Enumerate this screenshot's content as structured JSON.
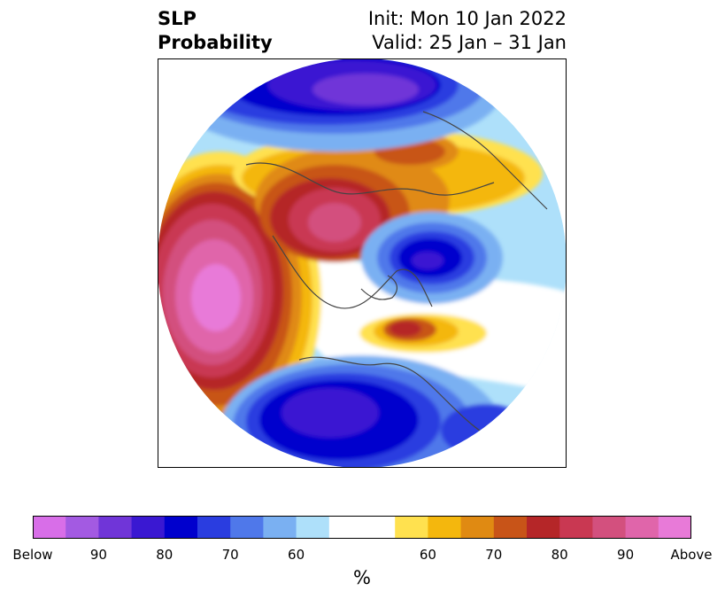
{
  "title": {
    "left_line1": "SLP",
    "left_line2": "Probability",
    "right_line1": "Init: Mon 10 Jan 2022",
    "right_line2": "Valid: 25 Jan – 31 Jan"
  },
  "map": {
    "projection": "north-polar-stereographic",
    "contour_levels_percent": [
      50,
      60,
      65,
      70,
      75,
      80,
      85,
      90,
      95
    ],
    "features": [
      {
        "name": "Below-normal SLP core (Alaska / Bering / Arctic Siberia)",
        "category": "below",
        "max_percent": 95
      },
      {
        "name": "Below-normal SLP core (Scandinavia / Barents)",
        "category": "below",
        "max_percent": 95
      },
      {
        "name": "Below-normal SLP (Eastern Europe / Russia region)",
        "category": "below",
        "max_percent": 90
      },
      {
        "name": "Above-normal SLP core (North Pacific)",
        "category": "above",
        "max_percent": 100
      },
      {
        "name": "Above-normal SLP (Siberia / East Asia)",
        "category": "above",
        "max_percent": 90
      },
      {
        "name": "Above-normal SLP (Greenland / Baffin)",
        "category": "above",
        "max_percent": 80
      }
    ]
  },
  "colorbar": {
    "units": "%",
    "colors": [
      "#d86ee8",
      "#a35ae2",
      "#7035d8",
      "#3a18d2",
      "#0000cd",
      "#2a3de0",
      "#4f78ea",
      "#7ab0f2",
      "#aee0fa",
      "#ffffff",
      "#ffe14f",
      "#f4b70d",
      "#e08a12",
      "#c85418",
      "#b52628",
      "#c93852",
      "#d3507e",
      "#e065aa",
      "#e87ad8"
    ],
    "tick_labels": [
      "Below",
      "90",
      "80",
      "70",
      "60",
      "60",
      "70",
      "80",
      "90",
      "Above"
    ]
  }
}
